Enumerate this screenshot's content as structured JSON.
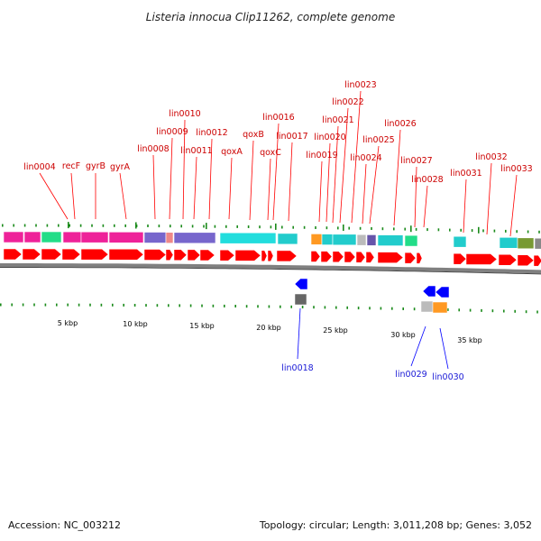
{
  "title": "Listeria innocua Clip11262, complete genome",
  "footer": {
    "accession": "Accession: NC_003212",
    "summary": "Topology: circular; Length: 3,011,208 bp; Genes: 3,052"
  },
  "colors": {
    "forward_gene": "#ff0000",
    "reverse_gene": "#0000ff",
    "label_forward": "#cc0000",
    "label_reverse": "#1a1ad6",
    "backbone": "#808080",
    "tick": "#1a8a1a"
  },
  "scale_labels": [
    "5 kbp",
    "10 kbp",
    "15 kbp",
    "20 kbp",
    "25 kbp",
    "30 kbp",
    "35 kbp"
  ],
  "forward_labels": [
    "lin0004",
    "recF",
    "gyrB",
    "gyrA",
    "lin0008",
    "lin0009",
    "lin0010",
    "lin0011",
    "lin0012",
    "qoxA",
    "qoxB",
    "qoxC",
    "lin0016",
    "lin0017",
    "lin0019",
    "lin0020",
    "lin0021",
    "lin0022",
    "lin0023",
    "lin0024",
    "lin0025",
    "lin0026",
    "lin0027",
    "lin0028",
    "lin0031",
    "lin0032",
    "lin0033"
  ],
  "reverse_labels": [
    "lin0018",
    "lin0029",
    "lin0030"
  ]
}
